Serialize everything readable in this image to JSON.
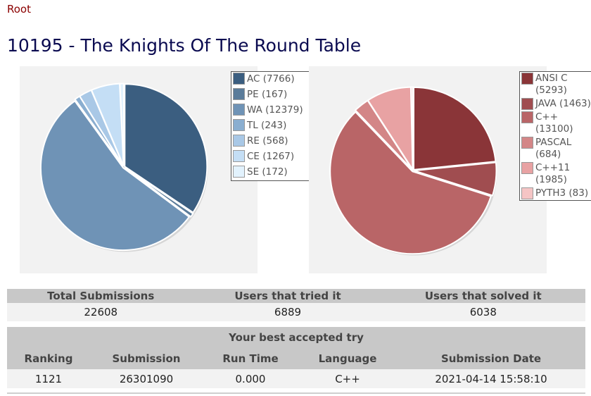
{
  "breadcrumb": "Root",
  "title": "10195 - The Knights Of The Round Table",
  "verdict_chart": {
    "slices": [
      {
        "label": "AC (7766)",
        "value": 7766,
        "color": "#3b5e80"
      },
      {
        "label": "PE (167)",
        "value": 167,
        "color": "#5b7c9a"
      },
      {
        "label": "WA (12379)",
        "value": 12379,
        "color": "#6f93b6"
      },
      {
        "label": "TL (243)",
        "value": 243,
        "color": "#8aaed0"
      },
      {
        "label": "RE (568)",
        "value": 568,
        "color": "#a9c8e6"
      },
      {
        "label": "CE (1267)",
        "value": 1267,
        "color": "#c4def5"
      },
      {
        "label": "SE (172)",
        "value": 172,
        "color": "#e2f2fd"
      }
    ]
  },
  "language_chart": {
    "slices": [
      {
        "label": "ANSI C (5293)",
        "value": 5293,
        "color": "#8a3538"
      },
      {
        "label": "JAVA (1463)",
        "value": 1463,
        "color": "#a04d50"
      },
      {
        "label": "C++ (13100)",
        "value": 13100,
        "color": "#b96567"
      },
      {
        "label": "PASCAL (684)",
        "value": 684,
        "color": "#d38687"
      },
      {
        "label": "C++11 (1985)",
        "value": 1985,
        "color": "#e8a2a3"
      },
      {
        "label": "PYTH3 (83)",
        "value": 83,
        "color": "#f5c5c5"
      }
    ]
  },
  "totals": {
    "headers": [
      "Total Submissions",
      "Users that tried it",
      "Users that solved it"
    ],
    "values": [
      "22608",
      "6889",
      "6038"
    ]
  },
  "best": {
    "caption": "Your best accepted try",
    "headers": [
      "Ranking",
      "Submission",
      "Run Time",
      "Language",
      "Submission Date"
    ],
    "values": [
      "1121",
      "26301090",
      "0.000",
      "C++",
      "2021-04-14 15:58:10"
    ]
  }
}
